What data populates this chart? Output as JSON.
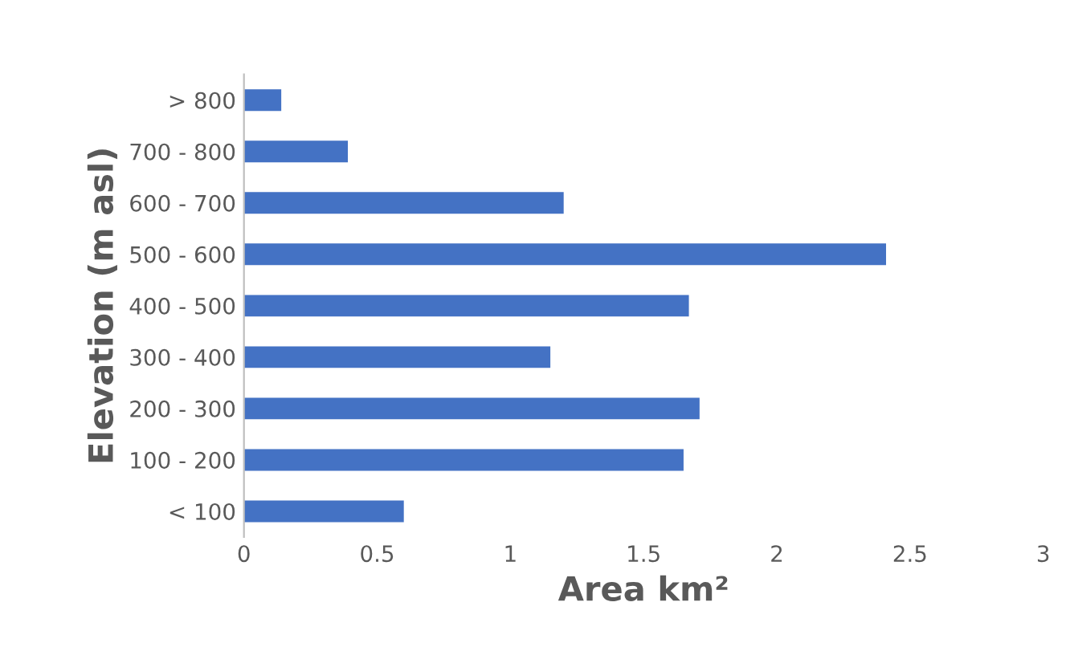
{
  "chart_data": {
    "type": "bar",
    "orientation": "horizontal",
    "xlabel": "Area km²",
    "ylabel": "Elevation (m asl)",
    "categories": [
      "> 800",
      "700 - 800",
      "600 - 700",
      "500 - 600",
      "400 - 500",
      "300 - 400",
      "200 - 300",
      "100 - 200",
      "< 100"
    ],
    "values": [
      0.14,
      0.39,
      1.2,
      2.41,
      1.67,
      1.15,
      1.71,
      1.65,
      0.6
    ],
    "color": "#4472c4",
    "xlim": [
      0,
      3
    ],
    "xticks": [
      0,
      0.5,
      1,
      1.5,
      2,
      2.5,
      3
    ],
    "grid": false
  }
}
